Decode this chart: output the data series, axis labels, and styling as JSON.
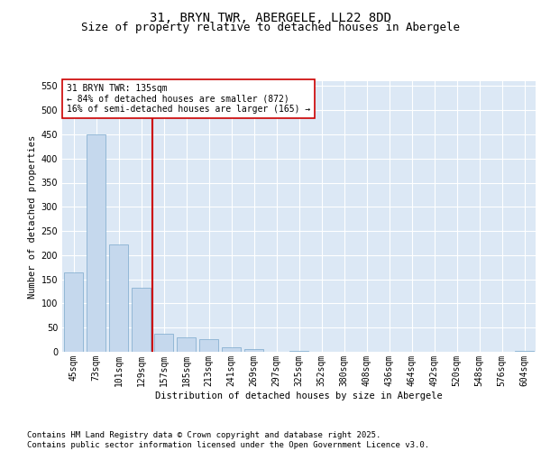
{
  "title1": "31, BRYN TWR, ABERGELE, LL22 8DD",
  "title2": "Size of property relative to detached houses in Abergele",
  "xlabel": "Distribution of detached houses by size in Abergele",
  "ylabel": "Number of detached properties",
  "categories": [
    "45sqm",
    "73sqm",
    "101sqm",
    "129sqm",
    "157sqm",
    "185sqm",
    "213sqm",
    "241sqm",
    "269sqm",
    "297sqm",
    "325sqm",
    "352sqm",
    "380sqm",
    "408sqm",
    "436sqm",
    "464sqm",
    "492sqm",
    "520sqm",
    "548sqm",
    "576sqm",
    "604sqm"
  ],
  "values": [
    165,
    450,
    222,
    133,
    37,
    30,
    26,
    9,
    5,
    0,
    1,
    0,
    0,
    0,
    0,
    0,
    0,
    0,
    0,
    0,
    2
  ],
  "bar_color": "#c5d8ed",
  "bar_edgecolor": "#7aa8cc",
  "vline_color": "#cc0000",
  "annotation_text": "31 BRYN TWR: 135sqm\n← 84% of detached houses are smaller (872)\n16% of semi-detached houses are larger (165) →",
  "annotation_box_facecolor": "#ffffff",
  "annotation_box_edgecolor": "#cc0000",
  "ylim": [
    0,
    560
  ],
  "yticks": [
    0,
    50,
    100,
    150,
    200,
    250,
    300,
    350,
    400,
    450,
    500,
    550
  ],
  "background_color": "#dce8f5",
  "grid_color": "#ffffff",
  "footer_text": "Contains HM Land Registry data © Crown copyright and database right 2025.\nContains public sector information licensed under the Open Government Licence v3.0.",
  "title_fontsize": 10,
  "subtitle_fontsize": 9,
  "axis_label_fontsize": 7.5,
  "tick_fontsize": 7,
  "annotation_fontsize": 7,
  "footer_fontsize": 6.5
}
